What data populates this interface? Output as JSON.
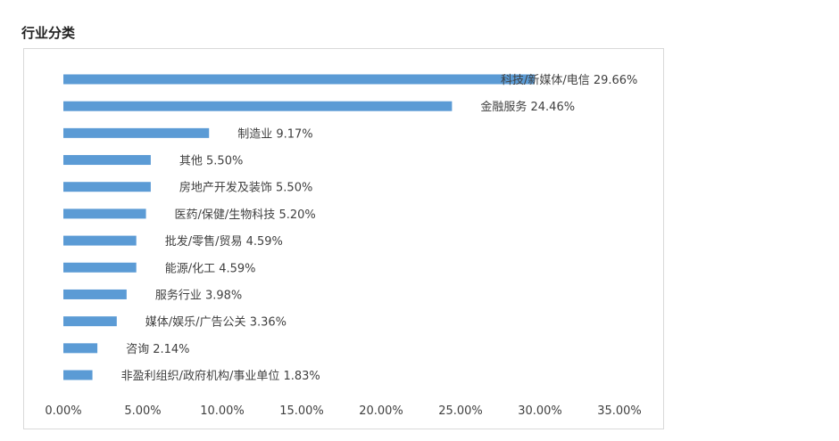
{
  "page": {
    "heading": "行业分类"
  },
  "colors": {
    "bar": "#5b9bd5",
    "text": "#404040",
    "frame": "#d9d9d9"
  },
  "chart_data": {
    "type": "bar",
    "orientation": "horizontal",
    "title": "",
    "xlabel": "",
    "ylabel": "",
    "xlim": [
      0,
      35
    ],
    "grid": false,
    "legend": "none",
    "x_ticks": [
      "0.00%",
      "5.00%",
      "10.00%",
      "15.00%",
      "20.00%",
      "25.00%",
      "30.00%",
      "35.00%"
    ],
    "categories": [
      "科技/新媒体/电信",
      "金融服务",
      "制造业",
      "其他",
      "房地产开发及装饰",
      "医药/保健/生物科技",
      "批发/零售/贸易",
      "能源/化工",
      "服务行业",
      "媒体/娱乐/广告公关",
      "咨询",
      "非盈利组织/政府机构/事业单位"
    ],
    "values": [
      29.66,
      24.46,
      9.17,
      5.5,
      5.5,
      5.2,
      4.59,
      4.59,
      3.98,
      3.36,
      2.14,
      1.83
    ],
    "data_labels": [
      "科技/新媒体/电信 29.66%",
      "金融服务 24.46%",
      "制造业 9.17%",
      "其他 5.50%",
      "房地产开发及装饰 5.50%",
      "医药/保健/生物科技 5.20%",
      "批发/零售/贸易 4.59%",
      "能源/化工 4.59%",
      "服务行业 3.98%",
      "媒体/娱乐/广告公关 3.36%",
      "咨询 2.14%",
      "非盈利组织/政府机构/事业单位 1.83%"
    ]
  }
}
